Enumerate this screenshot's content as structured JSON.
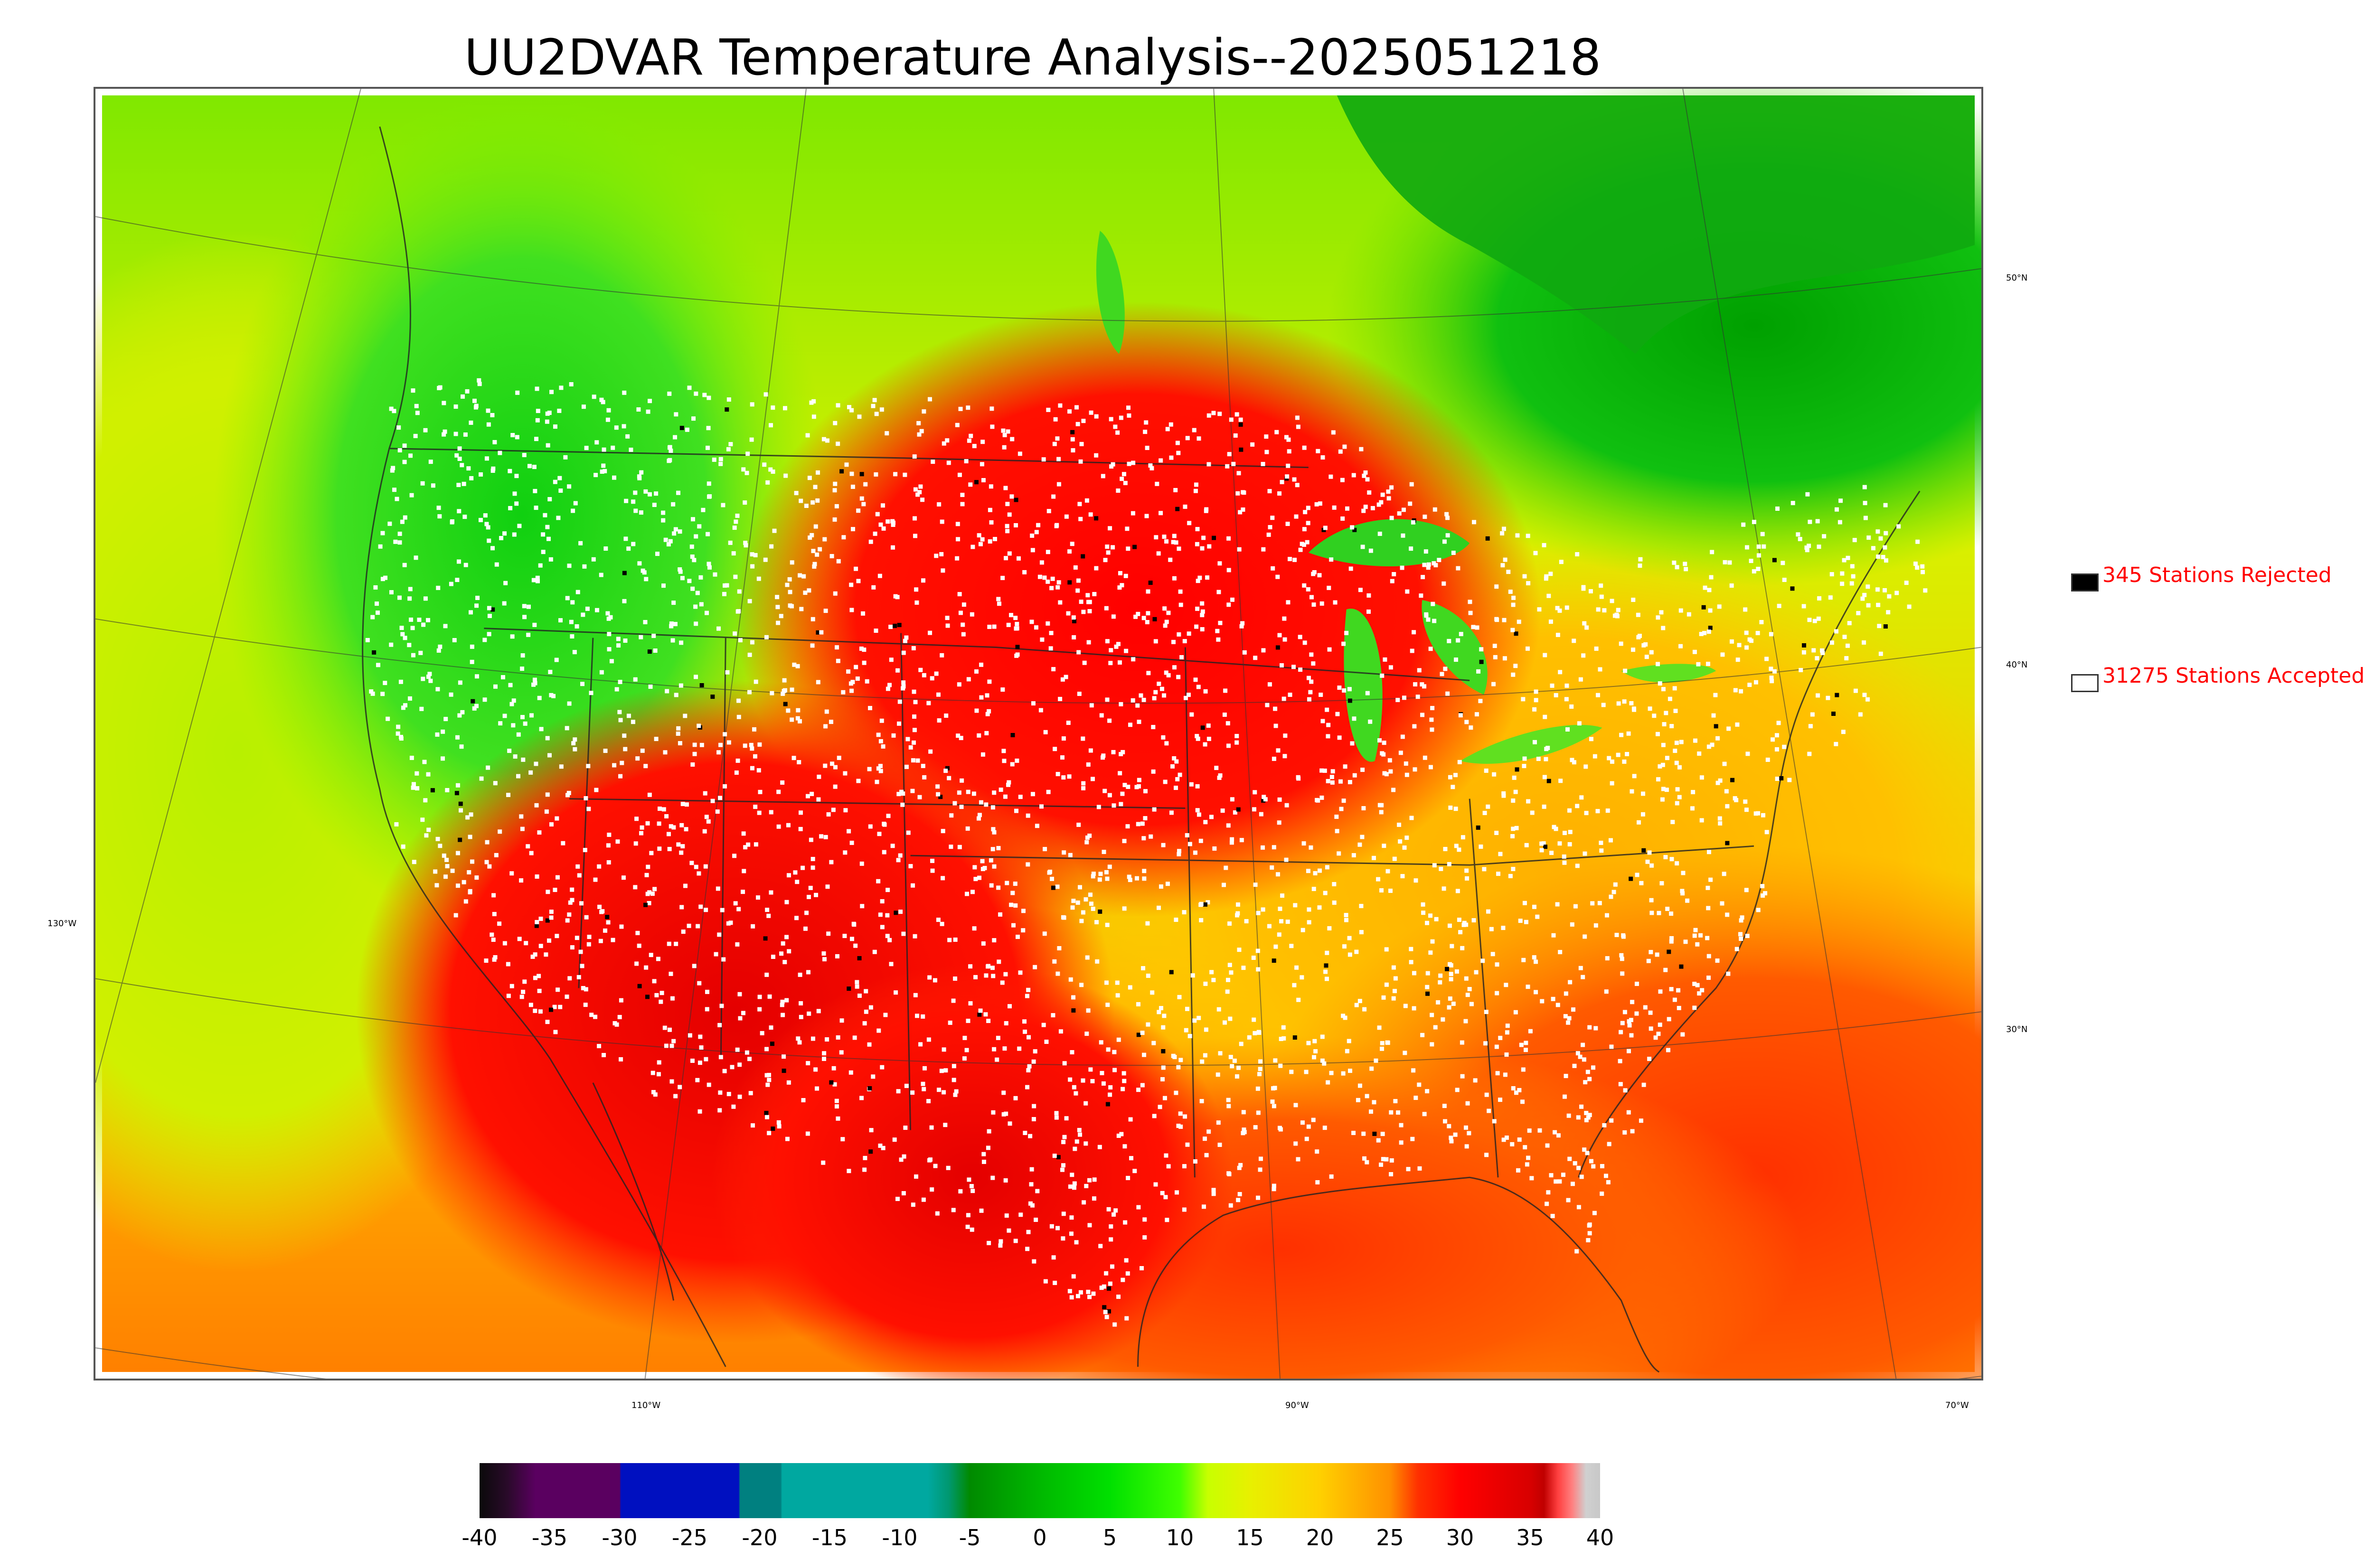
{
  "title": "UU2DVAR Temperature Analysis--2025051218",
  "legend": {
    "rejected_label": "345 Stations Rejected",
    "accepted_label": "31275 Stations Accepted",
    "rejected_color": "#000000",
    "accepted_color": "#ffffff",
    "text_color": "#ff0000"
  },
  "lat_labels": [
    "50°N",
    "40°N",
    "30°N"
  ],
  "lon_labels": [
    "130°W",
    "110°W",
    "90°W",
    "70°W"
  ],
  "colorbar": {
    "min": -40,
    "max": 40,
    "ticks": [
      "-40",
      "-35",
      "-30",
      "-25",
      "-20",
      "-15",
      "-10",
      "-5",
      "0",
      "5",
      "10",
      "15",
      "20",
      "25",
      "30",
      "35",
      "40"
    ],
    "colors": [
      {
        "value": -40,
        "color": "#0a0a0a"
      },
      {
        "value": -38,
        "color": "#2a0a2a"
      },
      {
        "value": -36,
        "color": "#5a0060"
      },
      {
        "value": -30,
        "color": "#5a0060"
      },
      {
        "value": -29.9,
        "color": "#0010c0"
      },
      {
        "value": -21.5,
        "color": "#0010c0"
      },
      {
        "value": -21.4,
        "color": "#008080"
      },
      {
        "value": -18.5,
        "color": "#008080"
      },
      {
        "value": -18.4,
        "color": "#00a8a0"
      },
      {
        "value": -8,
        "color": "#00a8a0"
      },
      {
        "value": -6.5,
        "color": "#009870"
      },
      {
        "value": -5,
        "color": "#008a00"
      },
      {
        "value": 0,
        "color": "#00b800"
      },
      {
        "value": 5,
        "color": "#00e000"
      },
      {
        "value": 10,
        "color": "#40ff00"
      },
      {
        "value": 12,
        "color": "#c8ff00"
      },
      {
        "value": 15,
        "color": "#e8f000"
      },
      {
        "value": 20,
        "color": "#ffd000"
      },
      {
        "value": 25,
        "color": "#ff9000"
      },
      {
        "value": 27,
        "color": "#ff3000"
      },
      {
        "value": 30,
        "color": "#ff0000"
      },
      {
        "value": 35,
        "color": "#d80000"
      },
      {
        "value": 36,
        "color": "#c00000"
      },
      {
        "value": 37,
        "color": "#ff4040"
      },
      {
        "value": 38,
        "color": "#ff8080"
      },
      {
        "value": 39,
        "color": "#d0d0d0"
      },
      {
        "value": 40,
        "color": "#c8c8c8"
      }
    ]
  }
}
